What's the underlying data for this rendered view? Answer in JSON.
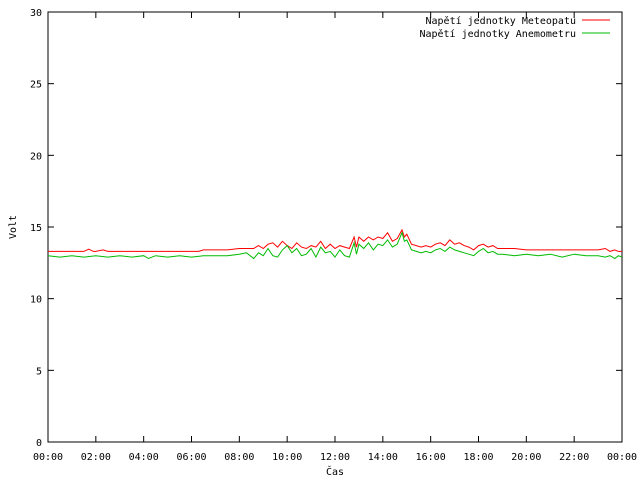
{
  "chart_data": {
    "type": "line",
    "xlabel": "Čas",
    "ylabel": "Volt",
    "ylim": [
      0,
      30
    ],
    "yticks": [
      0,
      5,
      10,
      15,
      20,
      25,
      30
    ],
    "xlim": [
      0,
      24
    ],
    "xticks": [
      {
        "value": 0,
        "label": "00:00"
      },
      {
        "value": 2,
        "label": "02:00"
      },
      {
        "value": 4,
        "label": "04:00"
      },
      {
        "value": 6,
        "label": "06:00"
      },
      {
        "value": 8,
        "label": "08:00"
      },
      {
        "value": 10,
        "label": "10:00"
      },
      {
        "value": 12,
        "label": "12:00"
      },
      {
        "value": 14,
        "label": "14:00"
      },
      {
        "value": 16,
        "label": "16:00"
      },
      {
        "value": 18,
        "label": "18:00"
      },
      {
        "value": 20,
        "label": "20:00"
      },
      {
        "value": 22,
        "label": "22:00"
      },
      {
        "value": 24,
        "label": "00:00"
      }
    ],
    "legend_position": "top-right",
    "grid": false,
    "series": [
      {
        "name": "Napětí jednotky Meteopatu",
        "color": "#ff0000",
        "x": [
          0,
          0.5,
          1,
          1.5,
          1.7,
          1.9,
          2,
          2.3,
          2.5,
          3,
          3.5,
          4,
          4.5,
          5,
          5.5,
          6,
          6.3,
          6.5,
          7,
          7.5,
          8,
          8.3,
          8.6,
          8.8,
          9,
          9.2,
          9.4,
          9.6,
          9.8,
          10,
          10.2,
          10.4,
          10.6,
          10.8,
          11,
          11.2,
          11.4,
          11.6,
          11.8,
          12,
          12.2,
          12.4,
          12.6,
          12.8,
          12.9,
          13,
          13.2,
          13.4,
          13.6,
          13.8,
          14,
          14.2,
          14.4,
          14.6,
          14.8,
          14.9,
          15,
          15.2,
          15.4,
          15.6,
          15.8,
          16,
          16.2,
          16.4,
          16.6,
          16.8,
          17,
          17.2,
          17.4,
          17.6,
          17.8,
          18,
          18.2,
          18.4,
          18.6,
          18.8,
          19,
          19.5,
          20,
          20.5,
          21,
          21.5,
          22,
          22.5,
          23,
          23.3,
          23.5,
          23.7,
          23.85,
          24
        ],
        "values": [
          13.3,
          13.3,
          13.3,
          13.3,
          13.45,
          13.3,
          13.3,
          13.4,
          13.3,
          13.3,
          13.3,
          13.3,
          13.3,
          13.3,
          13.3,
          13.3,
          13.3,
          13.4,
          13.4,
          13.4,
          13.5,
          13.5,
          13.5,
          13.7,
          13.5,
          13.8,
          13.9,
          13.6,
          14.0,
          13.7,
          13.5,
          13.9,
          13.6,
          13.5,
          13.7,
          13.6,
          14.0,
          13.5,
          13.8,
          13.5,
          13.7,
          13.6,
          13.5,
          14.3,
          13.6,
          14.3,
          14.0,
          14.3,
          14.1,
          14.3,
          14.2,
          14.6,
          14.0,
          14.2,
          14.8,
          14.3,
          14.5,
          13.8,
          13.7,
          13.6,
          13.7,
          13.6,
          13.8,
          13.9,
          13.7,
          14.1,
          13.8,
          13.9,
          13.7,
          13.6,
          13.4,
          13.7,
          13.8,
          13.6,
          13.7,
          13.5,
          13.5,
          13.5,
          13.4,
          13.4,
          13.4,
          13.4,
          13.4,
          13.4,
          13.4,
          13.5,
          13.3,
          13.4,
          13.3,
          13.3
        ]
      },
      {
        "name": "Napětí jednotky Anemometru",
        "color": "#00bb00",
        "x": [
          0,
          0.5,
          1,
          1.5,
          2,
          2.5,
          3,
          3.5,
          4,
          4.2,
          4.5,
          5,
          5.5,
          6,
          6.5,
          7,
          7.5,
          8,
          8.3,
          8.6,
          8.8,
          9,
          9.2,
          9.4,
          9.6,
          9.8,
          10,
          10.2,
          10.4,
          10.6,
          10.8,
          11,
          11.2,
          11.4,
          11.6,
          11.8,
          12,
          12.2,
          12.4,
          12.6,
          12.8,
          12.9,
          13,
          13.2,
          13.4,
          13.6,
          13.8,
          14,
          14.2,
          14.4,
          14.6,
          14.8,
          14.9,
          15,
          15.2,
          15.4,
          15.6,
          15.8,
          16,
          16.2,
          16.4,
          16.6,
          16.8,
          17,
          17.2,
          17.4,
          17.6,
          17.8,
          18,
          18.2,
          18.4,
          18.6,
          18.8,
          19,
          19.5,
          20,
          20.5,
          21,
          21.5,
          22,
          22.5,
          23,
          23.3,
          23.5,
          23.7,
          23.85,
          24
        ],
        "values": [
          13.0,
          12.9,
          13.0,
          12.9,
          13.0,
          12.9,
          13.0,
          12.9,
          13.0,
          12.8,
          13.0,
          12.9,
          13.0,
          12.9,
          13.0,
          13.0,
          13.0,
          13.1,
          13.2,
          12.8,
          13.2,
          13.0,
          13.5,
          13.0,
          12.9,
          13.4,
          13.7,
          13.2,
          13.5,
          13.0,
          13.1,
          13.5,
          12.9,
          13.6,
          13.2,
          13.3,
          12.9,
          13.4,
          13.0,
          12.9,
          13.9,
          13.1,
          13.8,
          13.5,
          13.9,
          13.4,
          13.8,
          13.7,
          14.1,
          13.6,
          13.8,
          14.6,
          14.0,
          14.1,
          13.4,
          13.3,
          13.2,
          13.3,
          13.2,
          13.4,
          13.5,
          13.3,
          13.6,
          13.4,
          13.3,
          13.2,
          13.1,
          13.0,
          13.3,
          13.5,
          13.2,
          13.3,
          13.1,
          13.1,
          13.0,
          13.1,
          13.0,
          13.1,
          12.9,
          13.1,
          13.0,
          13.0,
          12.9,
          13.0,
          12.8,
          13.0,
          12.9
        ]
      }
    ]
  }
}
